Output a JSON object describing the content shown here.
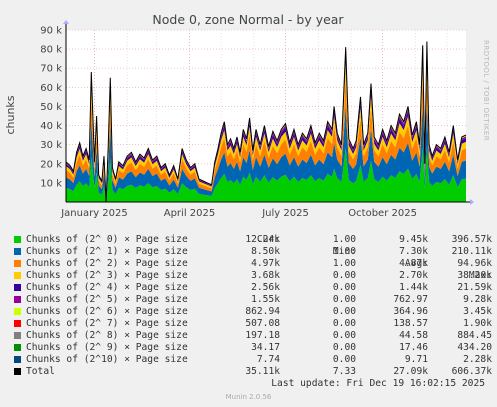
{
  "chart_data": {
    "type": "area",
    "title": "Node 0, zone Normal - by year",
    "ylabel": "chunks",
    "ylim": [
      0,
      90000
    ],
    "y_ticks": [
      10000,
      20000,
      30000,
      40000,
      50000,
      60000,
      70000,
      80000,
      90000
    ],
    "y_tick_labels": [
      "10 k",
      "20 k",
      "30 k",
      "40 k",
      "50 k",
      "60 k",
      "70 k",
      "80 k",
      "90 k"
    ],
    "x_range": [
      "2024-12-05",
      "2025-12-19"
    ],
    "x_ticks": [
      "2025-01-01",
      "2025-04-01",
      "2025-07-01",
      "2025-10-01"
    ],
    "x_tick_labels": [
      "January 2025",
      "April 2025",
      "July 2025",
      "October 2025"
    ],
    "grid": true,
    "side_text": "RRDTOOL / TOBI OETIKER",
    "columns": [
      "Cur:",
      "Min:",
      "Avg:",
      "Max:"
    ],
    "series": [
      {
        "name": "Chunks of (2^ 0) × Page size",
        "color": "#00cc00",
        "cur": "12.24k",
        "min": "1.00",
        "avg": "9.45k",
        "max": "396.57k"
      },
      {
        "name": "Chunks of (2^ 1) × Page size",
        "color": "#0066b3",
        "cur": "8.50k",
        "min": "1.00",
        "avg": "7.30k",
        "max": "210.11k"
      },
      {
        "name": "Chunks of (2^ 2) × Page size",
        "color": "#ff8000",
        "cur": "4.97k",
        "min": "1.00",
        "avg": "4.87k",
        "max": "94.96k"
      },
      {
        "name": "Chunks of (2^ 3) × Page size",
        "color": "#ffcc00",
        "cur": "3.68k",
        "min": "0.00",
        "avg": "2.70k",
        "max": "38.20k"
      },
      {
        "name": "Chunks of (2^ 4) × Page size",
        "color": "#330099",
        "cur": "2.56k",
        "min": "0.00",
        "avg": "1.44k",
        "max": "21.59k"
      },
      {
        "name": "Chunks of (2^ 5) × Page size",
        "color": "#990099",
        "cur": "1.55k",
        "min": "0.00",
        "avg": "762.97",
        "max": "9.28k"
      },
      {
        "name": "Chunks of (2^ 6) × Page size",
        "color": "#ccff00",
        "cur": "862.94",
        "min": "0.00",
        "avg": "364.96",
        "max": "3.45k"
      },
      {
        "name": "Chunks of (2^ 7) × Page size",
        "color": "#ff0000",
        "cur": "507.08",
        "min": "0.00",
        "avg": "138.57",
        "max": "1.90k"
      },
      {
        "name": "Chunks of (2^ 8) × Page size",
        "color": "#808080",
        "cur": "197.18",
        "min": "0.00",
        "avg": "44.58",
        "max": "884.45"
      },
      {
        "name": "Chunks of (2^ 9) × Page size",
        "color": "#008f00",
        "cur": "34.17",
        "min": "0.00",
        "avg": "17.46",
        "max": "434.20"
      },
      {
        "name": "Chunks of (2^10) × Page size",
        "color": "#00487d",
        "cur": "7.74",
        "min": "0.00",
        "avg": "9.71",
        "max": "2.28k"
      }
    ],
    "total": {
      "name": "Total",
      "color": "#000000",
      "cur": "35.11k",
      "min": "7.33",
      "avg": "27.09k",
      "max": "606.37k"
    },
    "total_samples": [
      [
        "2024-12-05",
        21000
      ],
      [
        "2024-12-09",
        19000
      ],
      [
        "2024-12-12",
        16000
      ],
      [
        "2024-12-15",
        26000
      ],
      [
        "2024-12-18",
        31000
      ],
      [
        "2024-12-21",
        24000
      ],
      [
        "2024-12-24",
        28000
      ],
      [
        "2024-12-27",
        22000
      ],
      [
        "2024-12-29",
        68000
      ],
      [
        "2025-01-01",
        21000
      ],
      [
        "2025-01-03",
        45000
      ],
      [
        "2025-01-05",
        14000
      ],
      [
        "2025-01-08",
        11000
      ],
      [
        "2025-01-10",
        24000
      ],
      [
        "2025-01-12",
        0
      ],
      [
        "2025-01-14",
        29000
      ],
      [
        "2025-01-16",
        65000
      ],
      [
        "2025-01-18",
        18000
      ],
      [
        "2025-01-21",
        12000
      ],
      [
        "2025-01-24",
        21000
      ],
      [
        "2025-01-28",
        19000
      ],
      [
        "2025-02-01",
        24000
      ],
      [
        "2025-02-05",
        26000
      ],
      [
        "2025-02-09",
        21000
      ],
      [
        "2025-02-13",
        25000
      ],
      [
        "2025-02-17",
        23000
      ],
      [
        "2025-02-21",
        28000
      ],
      [
        "2025-02-25",
        22000
      ],
      [
        "2025-03-01",
        24000
      ],
      [
        "2025-03-05",
        18000
      ],
      [
        "2025-03-09",
        20000
      ],
      [
        "2025-03-13",
        14000
      ],
      [
        "2025-03-17",
        19000
      ],
      [
        "2025-03-21",
        12000
      ],
      [
        "2025-03-25",
        28000
      ],
      [
        "2025-03-29",
        22000
      ],
      [
        "2025-04-02",
        18000
      ],
      [
        "2025-04-06",
        20000
      ],
      [
        "2025-04-10",
        12000
      ],
      [
        "2025-04-14",
        11000
      ],
      [
        "2025-04-18",
        10000
      ],
      [
        "2025-04-22",
        9000
      ],
      [
        "2025-04-25",
        21000
      ],
      [
        "2025-04-28",
        28000
      ],
      [
        "2025-05-01",
        36000
      ],
      [
        "2025-05-04",
        42000
      ],
      [
        "2025-05-07",
        30000
      ],
      [
        "2025-05-10",
        33000
      ],
      [
        "2025-05-13",
        28000
      ],
      [
        "2025-05-16",
        34000
      ],
      [
        "2025-05-19",
        26000
      ],
      [
        "2025-05-22",
        38000
      ],
      [
        "2025-05-25",
        33000
      ],
      [
        "2025-05-28",
        44000
      ],
      [
        "2025-05-31",
        27000
      ],
      [
        "2025-06-03",
        38000
      ],
      [
        "2025-06-07",
        30000
      ],
      [
        "2025-06-11",
        40000
      ],
      [
        "2025-06-15",
        29000
      ],
      [
        "2025-06-19",
        37000
      ],
      [
        "2025-06-23",
        32000
      ],
      [
        "2025-06-27",
        38000
      ],
      [
        "2025-07-01",
        41000
      ],
      [
        "2025-07-05",
        31000
      ],
      [
        "2025-07-09",
        38000
      ],
      [
        "2025-07-13",
        30000
      ],
      [
        "2025-07-17",
        36000
      ],
      [
        "2025-07-21",
        33000
      ],
      [
        "2025-07-25",
        40000
      ],
      [
        "2025-07-29",
        31000
      ],
      [
        "2025-08-02",
        36000
      ],
      [
        "2025-08-06",
        32000
      ],
      [
        "2025-08-10",
        42000
      ],
      [
        "2025-08-14",
        38000
      ],
      [
        "2025-08-16",
        50000
      ],
      [
        "2025-08-19",
        36000
      ],
      [
        "2025-08-23",
        30000
      ],
      [
        "2025-08-27",
        81000
      ],
      [
        "2025-08-30",
        33000
      ],
      [
        "2025-09-03",
        28000
      ],
      [
        "2025-09-06",
        32000
      ],
      [
        "2025-09-10",
        55000
      ],
      [
        "2025-09-13",
        30000
      ],
      [
        "2025-09-17",
        36000
      ],
      [
        "2025-09-20",
        62000
      ],
      [
        "2025-09-23",
        34000
      ],
      [
        "2025-09-27",
        30000
      ],
      [
        "2025-10-01",
        38000
      ],
      [
        "2025-10-05",
        32000
      ],
      [
        "2025-10-09",
        40000
      ],
      [
        "2025-10-13",
        36000
      ],
      [
        "2025-10-17",
        46000
      ],
      [
        "2025-10-21",
        42000
      ],
      [
        "2025-10-25",
        50000
      ],
      [
        "2025-10-29",
        35000
      ],
      [
        "2025-11-02",
        42000
      ],
      [
        "2025-11-05",
        30000
      ],
      [
        "2025-11-08",
        82000
      ],
      [
        "2025-11-10",
        20000
      ],
      [
        "2025-11-12",
        84000
      ],
      [
        "2025-11-14",
        30000
      ],
      [
        "2025-11-17",
        24000
      ],
      [
        "2025-11-21",
        30000
      ],
      [
        "2025-11-25",
        28000
      ],
      [
        "2025-11-29",
        34000
      ],
      [
        "2025-12-03",
        26000
      ],
      [
        "2025-12-07",
        40000
      ],
      [
        "2025-12-11",
        22000
      ],
      [
        "2025-12-15",
        34000
      ],
      [
        "2025-12-19",
        35110
      ]
    ]
  },
  "last_update": "Last update: Fri Dec 19 16:02:15 2025",
  "footer": "Munin 2.0.56"
}
